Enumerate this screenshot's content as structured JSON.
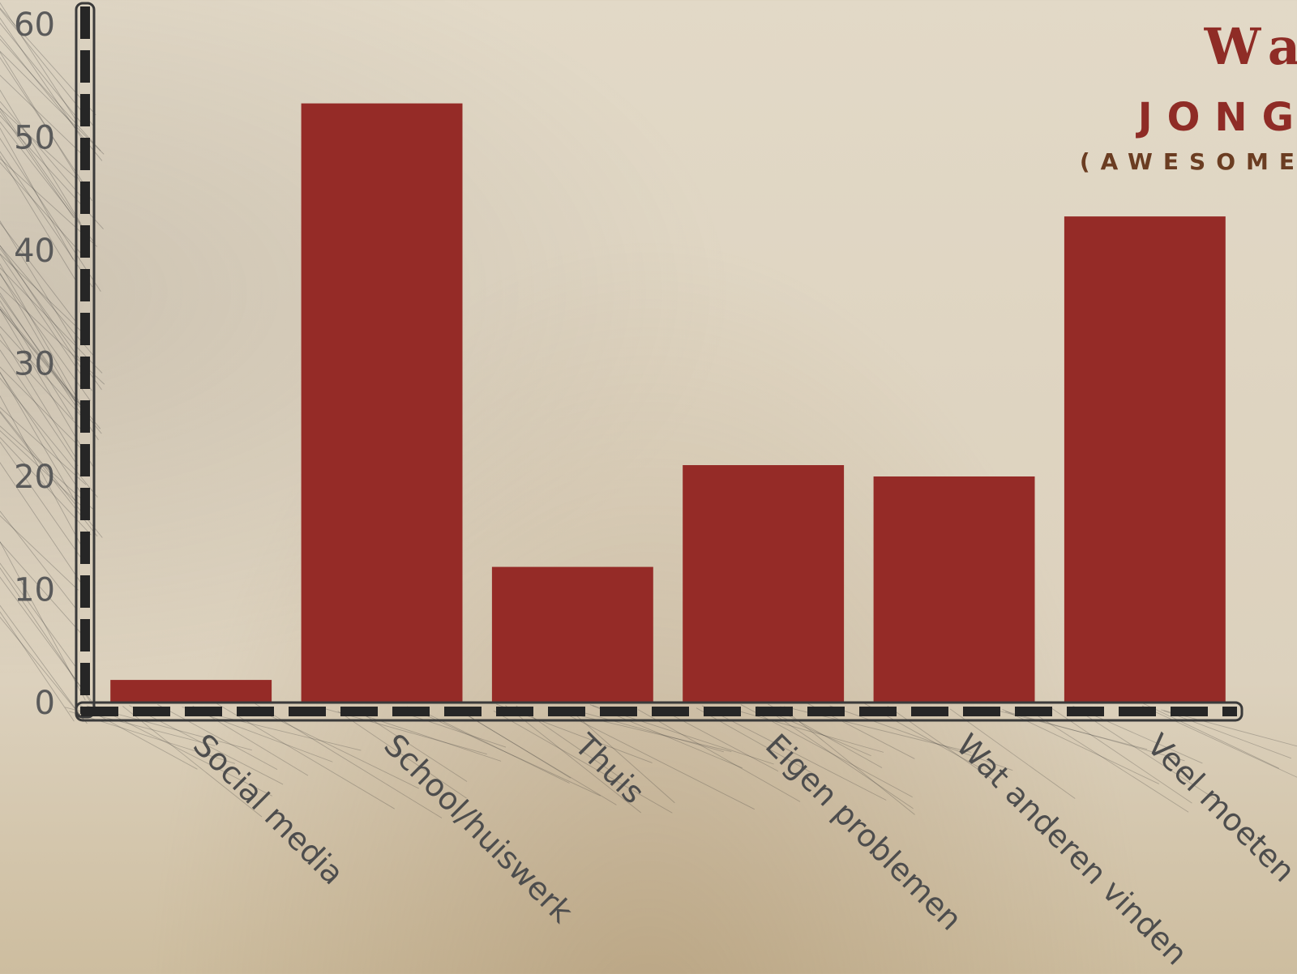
{
  "chart_data": {
    "type": "bar",
    "title_lines": [
      "Wa",
      "JONG",
      "(AWESOME"
    ],
    "categories": [
      "Social media",
      "School/huiswerk",
      "Thuis",
      "Eigen problemen",
      "Wat anderen vinden",
      "Veel moeten"
    ],
    "values": [
      2,
      53,
      12,
      21,
      20,
      43
    ],
    "ylim": [
      0,
      60
    ],
    "yticks": [
      0,
      10,
      20,
      30,
      40,
      50,
      60
    ],
    "xlabel": "",
    "ylabel": "",
    "grid": false,
    "legend": "none",
    "bar_color": "#952b27"
  }
}
